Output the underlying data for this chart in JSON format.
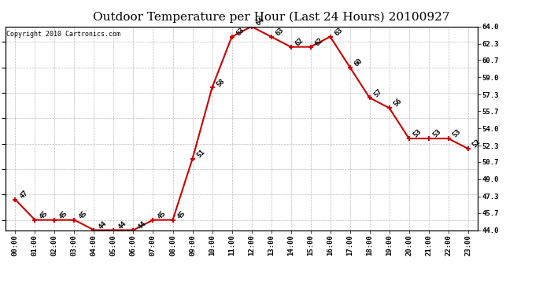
{
  "title": "Outdoor Temperature per Hour (Last 24 Hours) 20100927",
  "copyright": "Copyright 2010 Cartronics.com",
  "hours": [
    "00:00",
    "01:00",
    "02:00",
    "03:00",
    "04:00",
    "05:00",
    "06:00",
    "07:00",
    "08:00",
    "09:00",
    "10:00",
    "11:00",
    "12:00",
    "13:00",
    "14:00",
    "15:00",
    "16:00",
    "17:00",
    "18:00",
    "19:00",
    "20:00",
    "21:00",
    "22:00",
    "23:00"
  ],
  "temps": [
    47,
    45,
    45,
    45,
    44,
    44,
    44,
    45,
    45,
    51,
    58,
    63,
    64,
    63,
    62,
    62,
    63,
    60,
    57,
    56,
    53,
    53,
    53,
    52
  ],
  "ylim": [
    44.0,
    64.0
  ],
  "yticks": [
    44.0,
    45.7,
    47.3,
    49.0,
    50.7,
    52.3,
    54.0,
    55.7,
    57.3,
    59.0,
    60.7,
    62.3,
    64.0
  ],
  "line_color": "#cc0000",
  "marker": "+",
  "marker_size": 5,
  "marker_linewidth": 1.5,
  "line_width": 1.5,
  "grid_color": "#bbbbbb",
  "bg_color": "#ffffff",
  "title_fontsize": 11,
  "label_fontsize": 6.5,
  "annotation_fontsize": 6.5,
  "copyright_fontsize": 6
}
